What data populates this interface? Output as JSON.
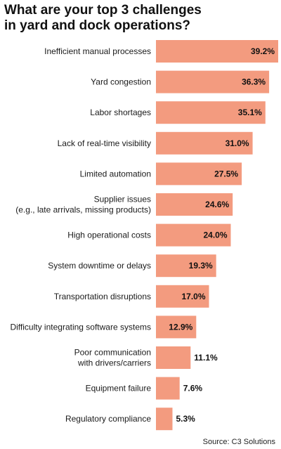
{
  "header": {
    "title_lines": [
      "What are your top 3 challenges",
      "in yard and dock operations?"
    ]
  },
  "footer": {
    "source": "Source: C3 Solutions"
  },
  "colors": {
    "bar": "#f39b7f",
    "text": "#1a1a1a"
  },
  "chart_data": {
    "type": "bar",
    "orientation": "horizontal",
    "value_format": "percent",
    "categories": [
      [
        "Inefficient manual processes"
      ],
      [
        "Yard congestion"
      ],
      [
        "Labor shortages"
      ],
      [
        "Lack of real-time visibility"
      ],
      [
        "Limited automation"
      ],
      [
        "Supplier issues",
        "(e.g., late arrivals, missing products)"
      ],
      [
        "High operational costs"
      ],
      [
        "System downtime or delays"
      ],
      [
        "Transportation disruptions"
      ],
      [
        "Difficulty integrating software systems"
      ],
      [
        "Poor communication",
        "with drivers/carriers"
      ],
      [
        "Equipment failure"
      ],
      [
        "Regulatory compliance"
      ]
    ],
    "values": [
      39.2,
      36.3,
      35.1,
      31.0,
      27.5,
      24.6,
      24.0,
      19.3,
      17.0,
      12.9,
      11.1,
      7.6,
      5.3
    ],
    "data_labels": [
      "39.2%",
      "36.3%",
      "35.1%",
      "31.0%",
      "27.5%",
      "24.6%",
      "24.0%",
      "19.3%",
      "17.0%",
      "12.9%",
      "11.1%",
      "7.6%",
      "5.3%"
    ],
    "grid": false,
    "legend": "none"
  }
}
